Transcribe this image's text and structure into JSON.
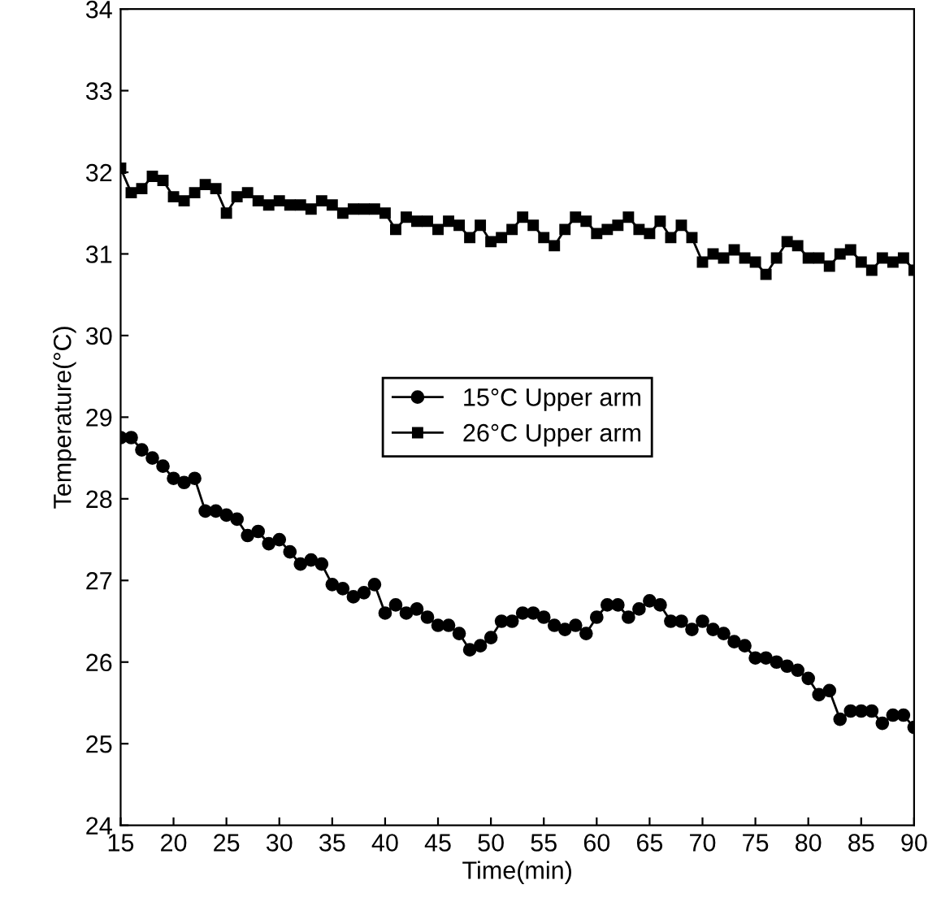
{
  "chart_data": {
    "type": "line",
    "xlabel": "Time(min)",
    "ylabel": "Temperature(°C)",
    "x": [
      15,
      16,
      17,
      18,
      19,
      20,
      21,
      22,
      23,
      24,
      25,
      26,
      27,
      28,
      29,
      30,
      31,
      32,
      33,
      34,
      35,
      36,
      37,
      38,
      39,
      40,
      41,
      42,
      43,
      44,
      45,
      46,
      47,
      48,
      49,
      50,
      51,
      52,
      53,
      54,
      55,
      56,
      57,
      58,
      59,
      60,
      61,
      62,
      63,
      64,
      65,
      66,
      67,
      68,
      69,
      70,
      71,
      72,
      73,
      74,
      75,
      76,
      77,
      78,
      79,
      80,
      81,
      82,
      83,
      84,
      85,
      86,
      87,
      88,
      89,
      90
    ],
    "series": [
      {
        "name": "15°C Upper arm",
        "color": "#000000",
        "marker": "circle",
        "values": [
          28.75,
          28.75,
          28.6,
          28.5,
          28.4,
          28.25,
          28.2,
          28.25,
          27.85,
          27.85,
          27.8,
          27.75,
          27.55,
          27.6,
          27.45,
          27.5,
          27.35,
          27.2,
          27.25,
          27.2,
          26.95,
          26.9,
          26.8,
          26.85,
          26.95,
          26.6,
          26.7,
          26.6,
          26.65,
          26.55,
          26.45,
          26.45,
          26.35,
          26.15,
          26.2,
          26.3,
          26.5,
          26.5,
          26.6,
          26.6,
          26.55,
          26.45,
          26.4,
          26.45,
          26.35,
          26.55,
          26.7,
          26.7,
          26.55,
          26.65,
          26.75,
          26.7,
          26.5,
          26.5,
          26.4,
          26.5,
          26.4,
          26.35,
          26.25,
          26.2,
          26.05,
          26.05,
          26.0,
          25.95,
          25.9,
          25.8,
          25.6,
          25.65,
          25.3,
          25.4,
          25.4,
          25.4,
          25.25,
          25.35,
          25.35,
          25.2
        ]
      },
      {
        "name": "26°C Upper arm",
        "color": "#000000",
        "marker": "square",
        "values": [
          32.05,
          31.75,
          31.8,
          31.95,
          31.9,
          31.7,
          31.65,
          31.75,
          31.85,
          31.8,
          31.5,
          31.7,
          31.75,
          31.65,
          31.6,
          31.65,
          31.6,
          31.6,
          31.55,
          31.65,
          31.6,
          31.5,
          31.55,
          31.55,
          31.55,
          31.5,
          31.3,
          31.45,
          31.4,
          31.4,
          31.3,
          31.4,
          31.35,
          31.2,
          31.35,
          31.15,
          31.2,
          31.3,
          31.45,
          31.35,
          31.2,
          31.1,
          31.3,
          31.45,
          31.4,
          31.25,
          31.3,
          31.35,
          31.45,
          31.3,
          31.25,
          31.4,
          31.2,
          31.35,
          31.2,
          30.9,
          31.0,
          30.95,
          31.05,
          30.95,
          30.9,
          30.75,
          30.95,
          31.15,
          31.1,
          30.95,
          30.95,
          30.85,
          31.0,
          31.05,
          30.9,
          30.8,
          30.95,
          30.9,
          30.95,
          30.8
        ]
      }
    ],
    "xlim": [
      15,
      90
    ],
    "xticks": [
      15,
      20,
      25,
      30,
      35,
      40,
      45,
      50,
      55,
      60,
      65,
      70,
      75,
      80,
      85,
      90
    ],
    "ylim": [
      24,
      34
    ],
    "yticks": [
      24,
      25,
      26,
      27,
      28,
      29,
      30,
      31,
      32,
      33,
      34
    ],
    "grid": false,
    "legend": "center",
    "line_style": "solid"
  }
}
